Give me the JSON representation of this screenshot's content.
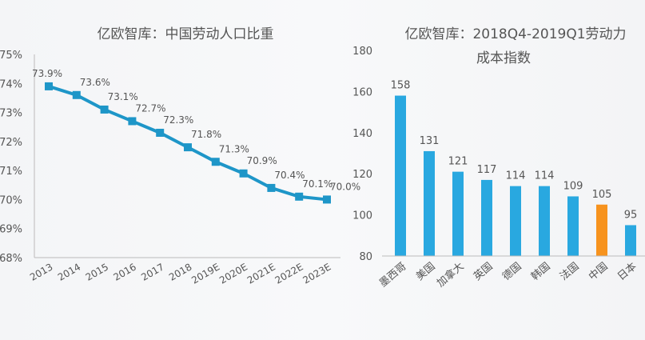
{
  "chart_data": [
    {
      "type": "line",
      "title": "亿欧智库：中国劳动人口比重",
      "categories": [
        "2013",
        "2014",
        "2015",
        "2016",
        "2017",
        "2018",
        "2019E",
        "2020E",
        "2021E",
        "2022E",
        "2023E"
      ],
      "values": [
        73.9,
        73.6,
        73.1,
        72.7,
        72.3,
        71.8,
        71.3,
        70.9,
        70.4,
        70.1,
        70.0
      ],
      "labels": [
        "73.9%",
        "73.6%",
        "73.1%",
        "72.7%",
        "72.3%",
        "71.8%",
        "71.3%",
        "70.9%",
        "70.4%",
        "70.1%",
        "70.0%"
      ],
      "yticks": [
        "68%",
        "69%",
        "70%",
        "71%",
        "72%",
        "73%",
        "74%",
        "75%"
      ],
      "ylim": [
        68,
        75
      ],
      "color": "#1e96c8"
    },
    {
      "type": "bar",
      "title_line1": "亿欧智库：2018Q4-2019Q1劳动力",
      "title_line2": "成本指数",
      "categories": [
        "墨西哥",
        "美国",
        "加拿大",
        "英国",
        "德国",
        "韩国",
        "法国",
        "中国",
        "日本"
      ],
      "values": [
        158,
        131,
        121,
        117,
        114,
        114,
        109,
        105,
        95
      ],
      "highlight": "中国",
      "yticks": [
        "80",
        "100",
        "120",
        "140",
        "160",
        "180"
      ],
      "ylim": [
        80,
        180
      ],
      "color": "#29a8e0",
      "highlight_color": "#f7931e"
    }
  ]
}
